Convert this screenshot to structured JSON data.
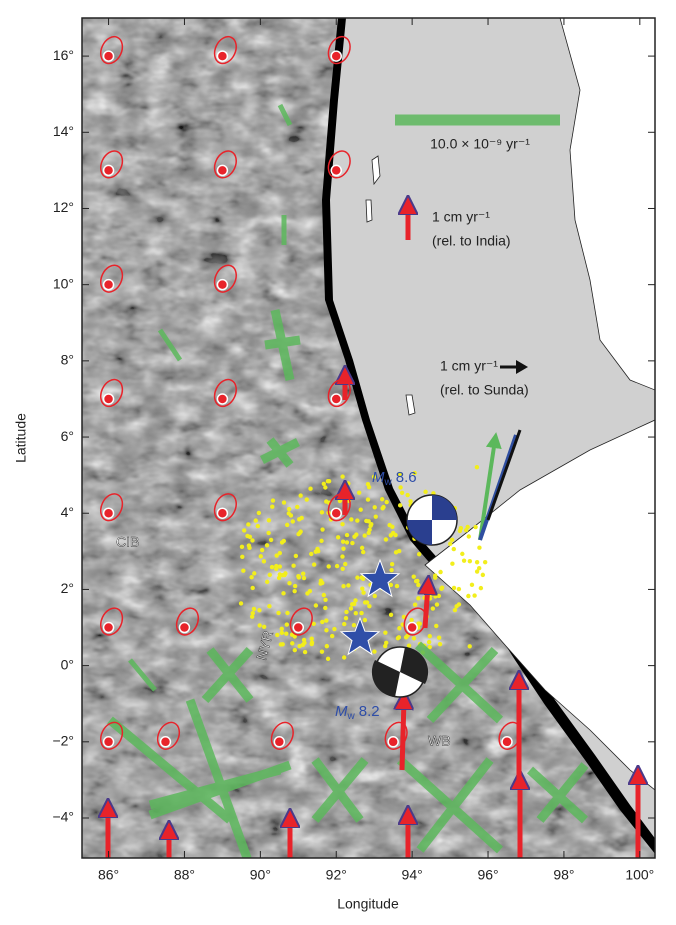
{
  "chart_data": {
    "type": "map",
    "xlabel": "Longitude",
    "ylabel": "Latitude",
    "xlim": [
      85.3,
      100.4
    ],
    "ylim": [
      -5.05,
      17
    ],
    "xticks": [
      {
        "value": 86,
        "label": "86°"
      },
      {
        "value": 88,
        "label": "88°"
      },
      {
        "value": 90,
        "label": "90°"
      },
      {
        "value": 92,
        "label": "92°"
      },
      {
        "value": 94,
        "label": "94°"
      },
      {
        "value": 96,
        "label": "96°"
      },
      {
        "value": 98,
        "label": "98°"
      },
      {
        "value": 100,
        "label": "100°"
      }
    ],
    "yticks": [
      {
        "value": -4,
        "label": "−4°"
      },
      {
        "value": -2,
        "label": "−2°"
      },
      {
        "value": 0,
        "label": "0°"
      },
      {
        "value": 2,
        "label": "2°"
      },
      {
        "value": 4,
        "label": "4°"
      },
      {
        "value": 6,
        "label": "6°"
      },
      {
        "value": 8,
        "label": "8°"
      },
      {
        "value": 10,
        "label": "10°"
      },
      {
        "value": 12,
        "label": "12°"
      },
      {
        "value": 14,
        "label": "14°"
      },
      {
        "value": 16,
        "label": "16°"
      }
    ],
    "stations": {
      "lon": [
        86,
        89,
        92,
        86,
        89,
        92,
        86,
        89,
        86,
        89,
        92,
        86,
        89,
        92,
        86,
        88,
        91,
        94,
        86,
        87.5,
        90.5,
        93.5,
        96.5
      ],
      "lat": [
        16,
        16,
        16,
        13,
        13,
        13,
        10,
        10,
        7,
        7,
        7,
        4,
        4,
        4,
        1,
        1,
        1,
        1,
        -2,
        -2,
        -2,
        -2,
        -2
      ],
      "color": "#e8232a"
    },
    "strain_scale": "10.0 × 10⁻⁹ yr⁻¹",
    "india_scale": {
      "rate": "1 cm yr⁻¹",
      "reference": "(rel. to India)"
    },
    "sunda_scale": {
      "rate": "1 cm yr⁻¹",
      "reference": "(rel. to Sunda)"
    },
    "events": [
      {
        "symbol": "M",
        "subscript": "w",
        "magnitude": "8.6"
      },
      {
        "symbol": "M",
        "subscript": "w",
        "magnitude": "8.2"
      }
    ],
    "regions": [
      "CIB",
      "NYR",
      "WB"
    ]
  }
}
